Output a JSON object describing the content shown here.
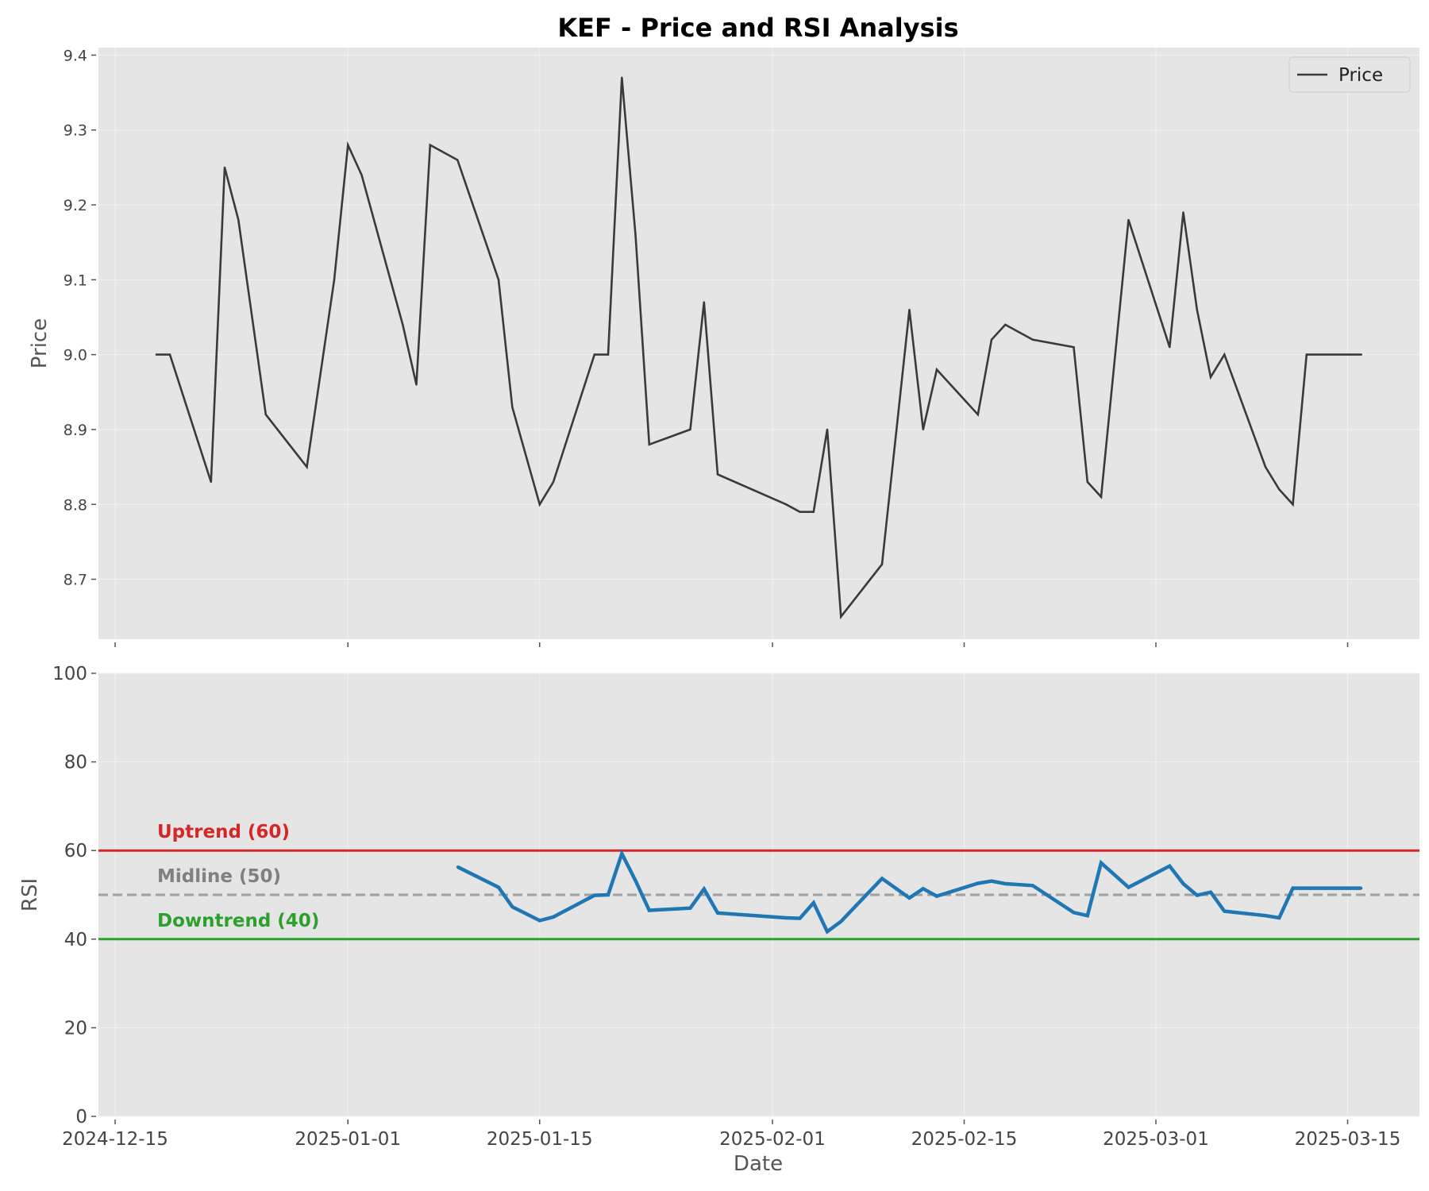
{
  "chart_data": {
    "type": "line",
    "title": "KEF - Price and RSI Analysis",
    "colors": {
      "background": "#e5e5e5",
      "grid": "#f2f2f2",
      "price_line": "#3a3a3a",
      "rsi_line": "#1f77b4",
      "uptrend": "#d62728",
      "midline": "#a0a0a0",
      "downtrend": "#2ca02c",
      "midline_label": "#808080"
    },
    "x_ticks": [
      "2024-12-15",
      "2025-01-01",
      "2025-01-15",
      "2025-02-01",
      "2025-02-15",
      "2025-03-01",
      "2025-03-15"
    ],
    "xlabel": "Date",
    "grid": true,
    "price_panel": {
      "ylabel": "Price",
      "ylim": [
        8.62,
        9.41
      ],
      "y_ticks": [
        "8.7",
        "8.8",
        "8.9",
        "9.0",
        "9.1",
        "9.2",
        "9.3",
        "9.4"
      ],
      "legend": {
        "position": "top-right",
        "entries": [
          "Price"
        ]
      },
      "series": [
        {
          "name": "Price",
          "x": [
            "2024-12-18",
            "2024-12-19",
            "2024-12-22",
            "2024-12-23",
            "2024-12-24",
            "2024-12-26",
            "2024-12-29",
            "2024-12-31",
            "2025-01-01",
            "2025-01-02",
            "2025-01-05",
            "2025-01-06",
            "2025-01-07",
            "2025-01-09",
            "2025-01-12",
            "2025-01-13",
            "2025-01-15",
            "2025-01-16",
            "2025-01-19",
            "2025-01-20",
            "2025-01-21",
            "2025-01-22",
            "2025-01-23",
            "2025-01-26",
            "2025-01-27",
            "2025-01-28",
            "2025-02-02",
            "2025-02-03",
            "2025-02-04",
            "2025-02-05",
            "2025-02-06",
            "2025-02-09",
            "2025-02-11",
            "2025-02-12",
            "2025-02-13",
            "2025-02-16",
            "2025-02-17",
            "2025-02-18",
            "2025-02-20",
            "2025-02-23",
            "2025-02-24",
            "2025-02-25",
            "2025-02-27",
            "2025-03-02",
            "2025-03-03",
            "2025-03-04",
            "2025-03-05",
            "2025-03-06",
            "2025-03-09",
            "2025-03-10",
            "2025-03-11",
            "2025-03-12",
            "2025-03-16"
          ],
          "y": [
            9.0,
            9.0,
            8.83,
            9.25,
            9.18,
            8.92,
            8.85,
            9.1,
            9.28,
            9.24,
            9.04,
            8.96,
            9.28,
            9.26,
            9.1,
            8.93,
            8.8,
            8.83,
            9.0,
            9.0,
            9.37,
            9.16,
            8.88,
            8.9,
            9.07,
            8.84,
            8.8,
            8.79,
            8.79,
            8.9,
            8.65,
            8.72,
            9.06,
            8.9,
            8.98,
            8.92,
            9.02,
            9.04,
            9.02,
            9.01,
            8.83,
            8.81,
            9.18,
            9.01,
            9.19,
            9.06,
            8.97,
            9.0,
            8.85,
            8.82,
            8.8,
            9.0,
            9.0
          ]
        }
      ]
    },
    "rsi_panel": {
      "ylabel": "RSI",
      "ylim": [
        0,
        100
      ],
      "y_ticks": [
        "0",
        "20",
        "40",
        "60",
        "80",
        "100"
      ],
      "reference_lines": [
        {
          "label": "Uptrend (60)",
          "value": 60,
          "style": "solid"
        },
        {
          "label": "Midline (50)",
          "value": 50,
          "style": "dashed"
        },
        {
          "label": "Downtrend (40)",
          "value": 40,
          "style": "solid"
        }
      ],
      "series": [
        {
          "x": [
            "2025-01-09",
            "2025-01-12",
            "2025-01-13",
            "2025-01-15",
            "2025-01-16",
            "2025-01-19",
            "2025-01-20",
            "2025-01-21",
            "2025-01-22",
            "2025-01-23",
            "2025-01-26",
            "2025-01-27",
            "2025-01-28",
            "2025-02-02",
            "2025-02-03",
            "2025-02-04",
            "2025-02-05",
            "2025-02-06",
            "2025-02-09",
            "2025-02-11",
            "2025-02-12",
            "2025-02-13",
            "2025-02-16",
            "2025-02-17",
            "2025-02-18",
            "2025-02-20",
            "2025-02-23",
            "2025-02-24",
            "2025-02-25",
            "2025-02-27",
            "2025-03-02",
            "2025-03-03",
            "2025-03-04",
            "2025-03-05",
            "2025-03-06",
            "2025-03-09",
            "2025-03-10",
            "2025-03-11",
            "2025-03-12",
            "2025-03-16"
          ],
          "y": [
            56.3,
            51.7,
            47.3,
            44.2,
            45.0,
            49.9,
            50.0,
            59.3,
            53.2,
            46.5,
            47.0,
            51.3,
            45.9,
            44.8,
            44.7,
            48.2,
            41.7,
            44.0,
            53.7,
            49.3,
            51.4,
            49.7,
            52.6,
            53.1,
            52.5,
            52.1,
            46.0,
            45.3,
            57.2,
            51.7,
            56.5,
            52.5,
            49.9,
            50.6,
            46.3,
            45.3,
            44.8,
            51.5,
            51.5,
            51.5
          ]
        }
      ]
    }
  }
}
